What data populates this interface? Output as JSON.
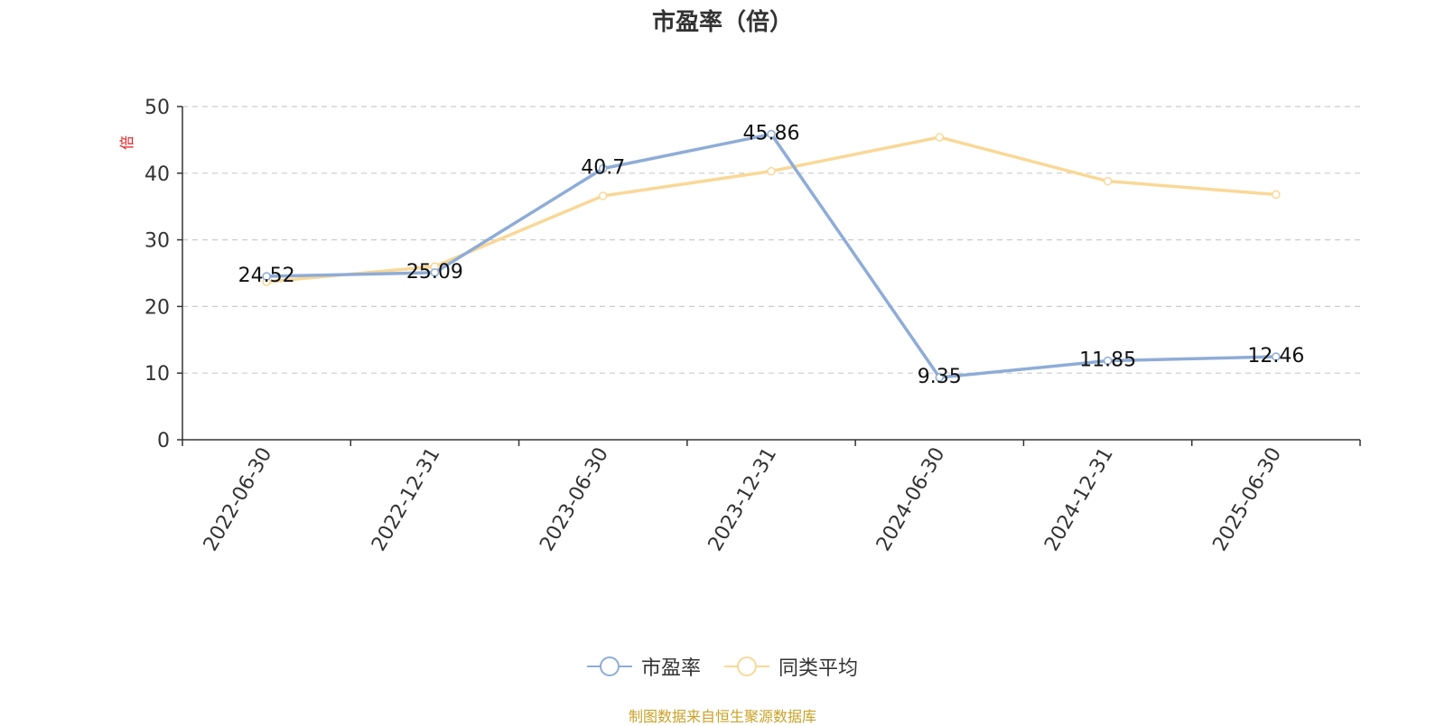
{
  "title": "市盈率（倍）",
  "source_note": "制图数据来自恒生聚源数据库",
  "chart_data": {
    "type": "line",
    "title": "市盈率（倍）",
    "ylabel": "倍",
    "xlabel": "",
    "categories": [
      "2022-06-30",
      "2022-12-31",
      "2023-06-30",
      "2023-12-31",
      "2024-06-30",
      "2024-12-31",
      "2025-06-30"
    ],
    "ylim": [
      0,
      50
    ],
    "yticks": [
      0,
      10,
      20,
      30,
      40,
      50
    ],
    "grid": true,
    "legend_position": "bottom",
    "series": [
      {
        "name": "市盈率",
        "color": "#8eacd7",
        "values": [
          24.52,
          25.09,
          40.7,
          45.86,
          9.35,
          11.85,
          12.46
        ],
        "labels": [
          "24.52",
          "25.09",
          "40.7",
          "45.86",
          "9.35",
          "11.85",
          "12.46"
        ]
      },
      {
        "name": "同类平均",
        "color": "#f9d897",
        "values": [
          23.7,
          26.0,
          36.6,
          40.3,
          45.4,
          38.8,
          36.8
        ]
      }
    ]
  }
}
